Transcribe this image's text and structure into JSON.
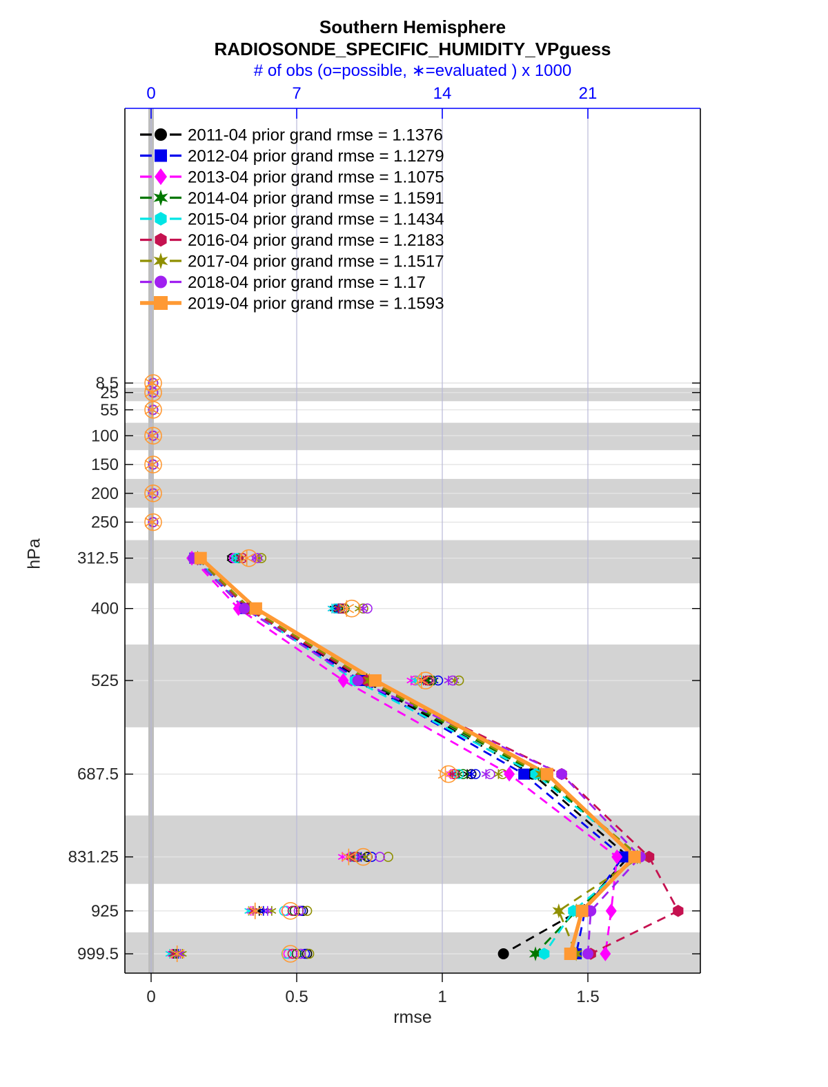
{
  "header": {
    "title": "Southern Hemisphere",
    "subtitle": "RADIOSONDE_SPECIFIC_HUMIDITY_VPguess"
  },
  "chart_data": {
    "type": "line",
    "title": "Southern Hemisphere",
    "subtitle": "RADIOSONDE_SPECIFIC_HUMIDITY_VPguess",
    "orientation": "vertical-profile",
    "top_axis": {
      "label": "# of obs (o=possible, ∗=evaluated ) x 1000",
      "ticks": [
        0,
        7,
        14,
        21
      ],
      "color": "#0000ff"
    },
    "x_axis": {
      "label": "rmse",
      "ticks": [
        0,
        0.5,
        1,
        1.5
      ],
      "range": [
        0,
        1.886
      ]
    },
    "y_axis": {
      "label": "hPa",
      "levels": [
        8.5,
        25,
        55,
        100,
        150,
        200,
        250,
        312.5,
        400,
        525,
        687.5,
        831.25,
        925,
        999.5
      ],
      "direction": "increasing-downward",
      "range": [
        -470,
        1033
      ]
    },
    "bands": {
      "color": "#d3d3d3",
      "centered_on_levels": [
        25,
        100,
        200,
        312.5,
        525,
        831.25,
        999.5
      ]
    },
    "zero_obs_bar": {
      "x_value": 0,
      "color": "#bdbdbd"
    },
    "rmse_levels": [
      312.5,
      400,
      525,
      687.5,
      831.25,
      925,
      999.5
    ],
    "obs_levels": [
      8.5,
      25,
      55,
      100,
      150,
      200,
      250,
      312.5,
      400,
      525,
      687.5,
      831.25,
      925,
      999.5
    ],
    "legend_position": "top-left",
    "series": [
      {
        "label": "2011-04 prior grand rmse = 1.1376",
        "year": "2011-04",
        "grand_rmse": 1.1376,
        "color": "#000000",
        "marker": "circle",
        "line": "dashed",
        "rmse": [
          0.16,
          0.33,
          0.73,
          1.31,
          1.64,
          1.47,
          1.21
        ],
        "obs_possible_k": [
          0.1,
          0.1,
          0.1,
          0.1,
          0.1,
          0.1,
          0.1,
          3.9,
          9.0,
          13.4,
          15.4,
          10.4,
          7.3,
          7.5
        ],
        "obs_evaluated_k": [
          0.05,
          0.05,
          0.05,
          0.05,
          0.05,
          0.05,
          0.05,
          3.85,
          8.8,
          13.2,
          15.2,
          10.0,
          5.2,
          1.2
        ]
      },
      {
        "label": "2012-04 prior grand rmse = 1.1279",
        "year": "2012-04",
        "grand_rmse": 1.1279,
        "color": "#0000ee",
        "marker": "square",
        "line": "dashed",
        "rmse": [
          0.15,
          0.32,
          0.72,
          1.28,
          1.62,
          1.49,
          1.46
        ],
        "obs_possible_k": [
          0.1,
          0.1,
          0.1,
          0.1,
          0.1,
          0.1,
          0.1,
          4.0,
          9.1,
          13.8,
          15.6,
          10.6,
          7.2,
          7.4
        ],
        "obs_evaluated_k": [
          0.05,
          0.05,
          0.05,
          0.05,
          0.05,
          0.05,
          0.05,
          3.95,
          8.9,
          13.6,
          15.4,
          10.1,
          5.4,
          1.3
        ]
      },
      {
        "label": "2013-04 prior grand rmse = 1.1075",
        "year": "2013-04",
        "grand_rmse": 1.1075,
        "color": "#ff00ff",
        "marker": "diamond",
        "line": "dashed",
        "rmse": [
          0.14,
          0.3,
          0.66,
          1.23,
          1.6,
          1.58,
          1.56
        ],
        "obs_possible_k": [
          0.1,
          0.1,
          0.1,
          0.1,
          0.1,
          0.1,
          0.1,
          4.0,
          8.9,
          12.7,
          14.5,
          9.6,
          6.5,
          6.6
        ],
        "obs_evaluated_k": [
          0.05,
          0.05,
          0.05,
          0.05,
          0.05,
          0.05,
          0.05,
          3.95,
          8.7,
          12.5,
          14.4,
          9.2,
          4.8,
          1.0
        ]
      },
      {
        "label": "2014-04 prior grand rmse = 1.1591",
        "year": "2014-04",
        "grand_rmse": 1.1591,
        "color": "#007700",
        "marker": "star",
        "line": "dashed",
        "rmse": [
          0.16,
          0.34,
          0.74,
          1.33,
          1.67,
          1.46,
          1.32
        ],
        "obs_possible_k": [
          0.1,
          0.1,
          0.1,
          0.1,
          0.1,
          0.1,
          0.1,
          4.2,
          9.3,
          13.5,
          15.0,
          9.9,
          6.9,
          7.0
        ],
        "obs_evaluated_k": [
          0.05,
          0.05,
          0.05,
          0.05,
          0.05,
          0.05,
          0.05,
          4.15,
          9.1,
          13.3,
          14.8,
          9.7,
          5.0,
          1.1
        ]
      },
      {
        "label": "2015-04 prior grand rmse = 1.1434",
        "year": "2015-04",
        "grand_rmse": 1.1434,
        "color": "#00e5e5",
        "marker": "hexagon",
        "line": "dashed",
        "rmse": [
          0.155,
          0.33,
          0.7,
          1.32,
          1.67,
          1.45,
          1.35
        ],
        "obs_possible_k": [
          0.1,
          0.1,
          0.1,
          0.1,
          0.1,
          0.1,
          0.1,
          4.1,
          8.9,
          12.9,
          14.8,
          9.7,
          6.4,
          6.5
        ],
        "obs_evaluated_k": [
          0.05,
          0.05,
          0.05,
          0.05,
          0.05,
          0.05,
          0.05,
          4.05,
          8.7,
          12.7,
          14.6,
          9.5,
          4.7,
          0.9
        ]
      },
      {
        "label": "2016-04 prior grand rmse = 1.2183",
        "year": "2016-04",
        "grand_rmse": 1.2183,
        "color": "#c51250",
        "marker": "hexagon",
        "line": "dashed",
        "rmse": [
          0.16,
          0.33,
          0.74,
          1.41,
          1.71,
          1.81,
          1.51
        ],
        "obs_possible_k": [
          0.1,
          0.1,
          0.1,
          0.1,
          0.1,
          0.1,
          0.1,
          4.4,
          9.2,
          13.3,
          14.6,
          9.8,
          6.8,
          6.8
        ],
        "obs_evaluated_k": [
          0.05,
          0.05,
          0.05,
          0.05,
          0.05,
          0.05,
          0.05,
          4.35,
          9.0,
          13.1,
          14.5,
          9.6,
          4.9,
          1.05
        ]
      },
      {
        "label": "2017-04 prior grand rmse = 1.1517",
        "year": "2017-04",
        "grand_rmse": 1.1517,
        "color": "#8f8f00",
        "marker": "star",
        "line": "dashed",
        "rmse": [
          0.16,
          0.34,
          0.75,
          1.34,
          1.68,
          1.4,
          1.46
        ],
        "obs_possible_k": [
          0.1,
          0.1,
          0.1,
          0.1,
          0.1,
          0.1,
          0.1,
          5.3,
          10.2,
          14.8,
          16.9,
          11.4,
          7.5,
          7.6
        ],
        "obs_evaluated_k": [
          0.05,
          0.05,
          0.05,
          0.05,
          0.05,
          0.05,
          0.05,
          5.2,
          10.0,
          14.6,
          16.7,
          10.3,
          5.8,
          1.5
        ]
      },
      {
        "label": "2018-04 prior grand rmse = 1.17",
        "year": "2018-04",
        "grand_rmse": 1.17,
        "color": "#a020f0",
        "marker": "circle",
        "line": "dashed",
        "rmse": [
          0.145,
          0.32,
          0.71,
          1.41,
          1.68,
          1.51,
          1.5
        ],
        "obs_possible_k": [
          0.1,
          0.1,
          0.1,
          0.1,
          0.1,
          0.1,
          0.1,
          5.1,
          10.4,
          14.5,
          16.3,
          11.0,
          7.1,
          7.2
        ],
        "obs_evaluated_k": [
          0.05,
          0.05,
          0.05,
          0.05,
          0.05,
          0.05,
          0.05,
          5.0,
          10.2,
          14.3,
          16.1,
          10.0,
          5.6,
          1.4
        ]
      },
      {
        "label": "2019-04 prior grand rmse = 1.1593",
        "year": "2019-04",
        "grand_rmse": 1.1593,
        "color": "#ff9933",
        "marker": "square",
        "line": "solid",
        "rmse": [
          0.17,
          0.36,
          0.77,
          1.36,
          1.66,
          1.48,
          1.44
        ],
        "obs_possible_k": [
          0.1,
          0.1,
          0.1,
          0.1,
          0.1,
          0.1,
          0.1,
          4.7,
          9.65,
          13.2,
          14.3,
          10.2,
          6.7,
          6.7
        ],
        "obs_evaluated_k": [
          0.05,
          0.05,
          0.05,
          0.05,
          0.05,
          0.05,
          0.05,
          4.6,
          9.4,
          13.0,
          14.15,
          9.5,
          5.0,
          1.25
        ]
      }
    ]
  }
}
